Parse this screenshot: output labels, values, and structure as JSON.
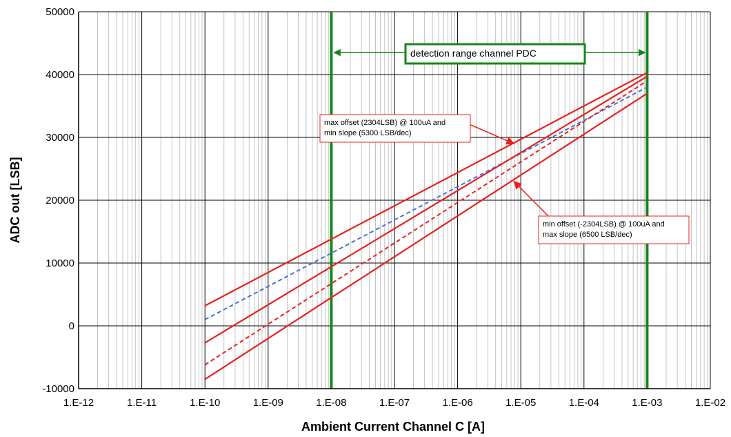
{
  "chart_data": {
    "type": "line",
    "xlabel": "Ambient Current Channel C [A]",
    "ylabel": "ADC out [LSB]",
    "x_scale": "log",
    "xlim": [
      1e-12,
      0.01
    ],
    "ylim": [
      -10000,
      50000
    ],
    "x_tick_labels": [
      "1.E-12",
      "1.E-11",
      "1.E-10",
      "1.E-09",
      "1.E-08",
      "1.E-07",
      "1.E-06",
      "1.E-05",
      "1.E-04",
      "1.E-03",
      "1.E-02"
    ],
    "y_tick_labels": [
      "-10000",
      "0",
      "10000",
      "20000",
      "30000",
      "40000",
      "50000"
    ],
    "grid": true,
    "colors": {
      "red": "#e8211c",
      "blue": "#4a6fd6",
      "green": "#13861a",
      "grid_major": "#000000",
      "grid_minor": "#b4b4b4"
    },
    "series": [
      {
        "style": "solid",
        "color": "red",
        "x": [
          1e-10,
          0.001
        ],
        "y": [
          3200,
          40300
        ]
      },
      {
        "style": "dashed",
        "color": "blue",
        "x": [
          1e-10,
          0.001
        ],
        "y": [
          1000,
          38000
        ]
      },
      {
        "style": "solid",
        "color": "red",
        "x": [
          1e-10,
          0.001
        ],
        "y": [
          -2700,
          39700
        ]
      },
      {
        "style": "dashed",
        "color": "red",
        "x": [
          1e-10,
          0.001
        ],
        "y": [
          -6200,
          39000
        ]
      },
      {
        "style": "solid",
        "color": "red",
        "x": [
          1e-10,
          0.001
        ],
        "y": [
          -8500,
          37000
        ]
      }
    ],
    "vertical_lines": [
      {
        "x": 1e-08,
        "color": "green"
      },
      {
        "x": 0.001,
        "color": "green"
      }
    ],
    "annotations": [
      {
        "id": "detection",
        "color": "green",
        "lines": [
          "detection range channel PDC"
        ],
        "arrow_y": 43500,
        "arrow_from_x": 1e-08,
        "arrow_to_x": 0.001
      },
      {
        "id": "max_offset",
        "color": "red",
        "lines": [
          "max offset (2304LSB) @ 100uA and",
          "min slope (5300 LSB/dec)"
        ],
        "arrow_to": {
          "x": 1e-05,
          "y": 29000
        }
      },
      {
        "id": "min_offset",
        "color": "red",
        "lines": [
          "min offset (-2304LSB) @ 100uA and",
          "max slope (6500 LSB/dec)"
        ],
        "arrow_to": {
          "x": 1e-05,
          "y": 23000
        }
      }
    ]
  }
}
